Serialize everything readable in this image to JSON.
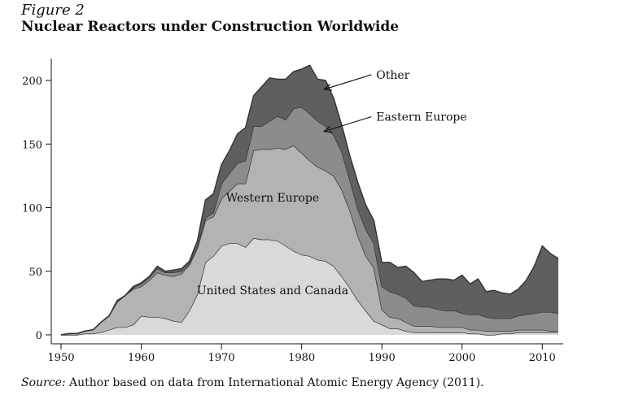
{
  "figure_label": "Figure 2",
  "source": {
    "prefix": "Source:",
    "text": " Author based on data from International Atomic Energy Agency (2011)."
  },
  "colors": {
    "us_canada": "#d9d9d9",
    "western_europe": "#b3b3b3",
    "eastern_europe": "#8c8c8c",
    "other": "#5f5f5f",
    "outline": "#333333"
  },
  "chart_data": {
    "type": "area",
    "stacked": true,
    "title": "Nuclear Reactors under Construction Worldwide",
    "xlabel": "",
    "ylabel": "",
    "xlim": [
      1950,
      2012
    ],
    "ylim": [
      0,
      220
    ],
    "xticks": [
      1950,
      1960,
      1970,
      1980,
      1990,
      2000,
      2010
    ],
    "yticks": [
      0,
      50,
      100,
      150,
      200
    ],
    "x": [
      1950,
      1951,
      1952,
      1953,
      1954,
      1955,
      1956,
      1957,
      1958,
      1959,
      1960,
      1961,
      1962,
      1963,
      1964,
      1965,
      1966,
      1967,
      1968,
      1969,
      1970,
      1971,
      1972,
      1973,
      1974,
      1975,
      1976,
      1977,
      1978,
      1979,
      1980,
      1981,
      1982,
      1983,
      1984,
      1985,
      1986,
      1987,
      1988,
      1989,
      1990,
      1991,
      1992,
      1993,
      1994,
      1995,
      1996,
      1997,
      1998,
      1999,
      2000,
      2001,
      2002,
      2003,
      2004,
      2005,
      2006,
      2007,
      2008,
      2009,
      2010,
      2011,
      2012
    ],
    "series": [
      {
        "name": "United States and Canada",
        "color_key": "us_canada",
        "values": [
          0,
          0,
          0,
          1,
          1,
          2,
          4,
          6,
          6,
          8,
          15,
          14,
          14,
          13,
          11,
          10,
          19,
          32,
          57,
          62,
          70,
          72,
          72,
          69,
          76,
          75,
          75,
          74,
          70,
          66,
          63,
          62,
          59,
          58,
          54,
          46,
          37,
          27,
          19,
          11,
          8,
          5,
          5,
          3,
          2,
          2,
          2,
          2,
          2,
          2,
          2,
          1,
          1,
          0,
          0,
          1,
          1,
          2,
          2,
          2,
          2,
          2,
          2
        ]
      },
      {
        "name": "Western Europe",
        "color_key": "western_europe",
        "values": [
          0,
          1,
          1,
          2,
          3,
          8,
          11,
          20,
          25,
          28,
          23,
          29,
          35,
          34,
          35,
          38,
          36,
          36,
          33,
          31,
          37,
          41,
          47,
          50,
          69,
          71,
          71,
          73,
          76,
          83,
          80,
          75,
          73,
          71,
          71,
          68,
          61,
          51,
          43,
          42,
          12,
          9,
          8,
          7,
          5,
          5,
          5,
          4,
          4,
          4,
          4,
          3,
          3,
          3,
          3,
          2,
          2,
          2,
          2,
          2,
          2,
          1,
          1
        ]
      },
      {
        "name": "Eastern Europe",
        "color_key": "eastern_europe",
        "values": [
          0,
          0,
          0,
          0,
          0,
          0,
          0,
          0,
          0,
          1,
          2,
          2,
          3,
          2,
          3,
          2,
          1,
          2,
          2,
          3,
          12,
          14,
          16,
          18,
          19,
          18,
          22,
          25,
          23,
          29,
          36,
          37,
          36,
          35,
          32,
          30,
          24,
          21,
          21,
          19,
          18,
          20,
          19,
          19,
          16,
          15,
          15,
          14,
          13,
          13,
          11,
          12,
          12,
          11,
          10,
          10,
          10,
          11,
          12,
          13,
          14,
          15,
          14
        ]
      },
      {
        "name": "Other",
        "color_key": "other",
        "values": [
          0,
          0,
          0,
          0,
          0,
          0,
          0,
          1,
          0,
          1,
          1,
          1,
          2,
          1,
          2,
          2,
          2,
          4,
          14,
          15,
          15,
          18,
          23,
          26,
          24,
          31,
          34,
          29,
          32,
          29,
          30,
          38,
          33,
          36,
          29,
          21,
          19,
          21,
          19,
          18,
          19,
          23,
          21,
          25,
          26,
          20,
          21,
          24,
          25,
          24,
          30,
          24,
          28,
          20,
          22,
          20,
          19,
          21,
          27,
          37,
          52,
          46,
          43
        ]
      }
    ],
    "annotations": [
      {
        "text": "Other",
        "kind": "callout",
        "year": 1982,
        "series": "Other"
      },
      {
        "text": "Eastern Europe",
        "kind": "callout",
        "year": 1982,
        "series": "Eastern Europe"
      },
      {
        "text": "Western Europe",
        "kind": "inline",
        "year": 1978,
        "series": "Western Europe"
      },
      {
        "text": "United States and Canada",
        "kind": "inline",
        "year": 1978,
        "series": "United States and Canada"
      }
    ]
  }
}
